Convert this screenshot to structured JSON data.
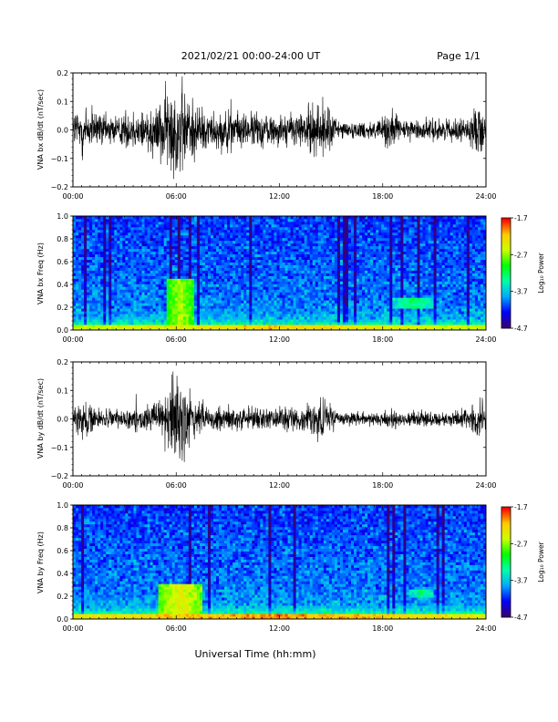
{
  "header": {
    "title": "2021/02/21  00:00-24:00 UT",
    "page": "Page 1/1"
  },
  "xaxis": {
    "label": "Universal Time (hh:mm)",
    "ticks": [
      "00:00",
      "06:00",
      "12:00",
      "18:00",
      "24:00"
    ]
  },
  "colors": {
    "background": "#ffffff",
    "trace": "#000000",
    "colormap": [
      "#3a0070",
      "#0000ff",
      "#00aaff",
      "#00ffaa",
      "#00ff00",
      "#ccff00",
      "#ffcc00",
      "#ff0000"
    ]
  },
  "chart_data": [
    {
      "type": "line",
      "id": "bx",
      "ylabel": "VNA bx dB/dt (nT/sec)",
      "ylim": [
        -0.2,
        0.2
      ],
      "yticks": [
        "0.2",
        "0.1",
        "0.0",
        "−0.1",
        "−0.2"
      ],
      "xlim": [
        0,
        24
      ],
      "envelope": {
        "hours": [
          0,
          0.5,
          1,
          2,
          3,
          4,
          5,
          5.5,
          6,
          6.5,
          7,
          8,
          9,
          10,
          11,
          12,
          13,
          14,
          14.5,
          15,
          15.5,
          16,
          17,
          18,
          18.5,
          19,
          20,
          21,
          22,
          23,
          23.5,
          24
        ],
        "amplitude": [
          0.08,
          0.12,
          0.09,
          0.06,
          0.07,
          0.09,
          0.11,
          0.17,
          0.2,
          0.18,
          0.12,
          0.07,
          0.08,
          0.07,
          0.07,
          0.06,
          0.07,
          0.1,
          0.12,
          0.08,
          0.04,
          0.03,
          0.035,
          0.05,
          0.09,
          0.04,
          0.04,
          0.045,
          0.04,
          0.05,
          0.1,
          0.06
        ]
      }
    },
    {
      "type": "heatmap",
      "id": "bx-spectrogram",
      "ylabel": "VNA bx Freq (Hz)",
      "ylim": [
        0.0,
        1.0
      ],
      "yticks": [
        "1.0",
        "0.8",
        "0.6",
        "0.4",
        "0.2",
        "0.0"
      ],
      "colorbar": {
        "label": "Log₁₀ Power",
        "ticks": [
          "-1.7",
          "-2.7",
          "-3.7",
          "-4.7"
        ],
        "range": [
          -4.7,
          -1.7
        ]
      },
      "features": [
        {
          "hours": [
            5.5,
            7.0
          ],
          "freq_hz": [
            0.0,
            0.45
          ],
          "log_power": -2.6
        },
        {
          "hours": [
            18.5,
            21.0
          ],
          "freq_hz": [
            0.2,
            0.28
          ],
          "log_power": -3.2
        },
        {
          "hours": [
            0,
            24
          ],
          "freq_hz": [
            0.0,
            0.05
          ],
          "log_power": -2.2
        }
      ]
    },
    {
      "type": "line",
      "id": "by",
      "ylabel": "VNA by dB/dt (nT/sec)",
      "ylim": [
        -0.2,
        0.2
      ],
      "yticks": [
        "0.2",
        "0.1",
        "0.0",
        "−0.1",
        "−0.2"
      ],
      "xlim": [
        0,
        24
      ],
      "envelope": {
        "hours": [
          0,
          0.5,
          1,
          2,
          3,
          4,
          5,
          5.5,
          6,
          6.5,
          7,
          8,
          9,
          10,
          11,
          12,
          13,
          14,
          14.5,
          15,
          15.5,
          16,
          17,
          18,
          18.5,
          19,
          20,
          21,
          22,
          23,
          23.5,
          24
        ],
        "amplitude": [
          0.05,
          0.09,
          0.05,
          0.035,
          0.04,
          0.05,
          0.07,
          0.12,
          0.2,
          0.15,
          0.08,
          0.05,
          0.06,
          0.05,
          0.05,
          0.045,
          0.05,
          0.06,
          0.08,
          0.05,
          0.03,
          0.025,
          0.025,
          0.03,
          0.05,
          0.03,
          0.03,
          0.03,
          0.03,
          0.04,
          0.1,
          0.05
        ]
      }
    },
    {
      "type": "heatmap",
      "id": "by-spectrogram",
      "ylabel": "VNA by Freq (Hz)",
      "ylim": [
        0.0,
        1.0
      ],
      "yticks": [
        "1.0",
        "0.8",
        "0.6",
        "0.4",
        "0.2",
        "0.0"
      ],
      "colorbar": {
        "label": "Log₁₀ Power",
        "ticks": [
          "-1.7",
          "-2.7",
          "-3.7",
          "-4.7"
        ],
        "range": [
          -4.7,
          -1.7
        ]
      },
      "features": [
        {
          "hours": [
            5.0,
            7.5
          ],
          "freq_hz": [
            0.0,
            0.3
          ],
          "log_power": -2.4
        },
        {
          "hours": [
            19.5,
            21.0
          ],
          "freq_hz": [
            0.2,
            0.26
          ],
          "log_power": -3.3
        },
        {
          "hours": [
            0,
            24
          ],
          "freq_hz": [
            0.0,
            0.04
          ],
          "log_power": -2.0
        }
      ]
    }
  ]
}
